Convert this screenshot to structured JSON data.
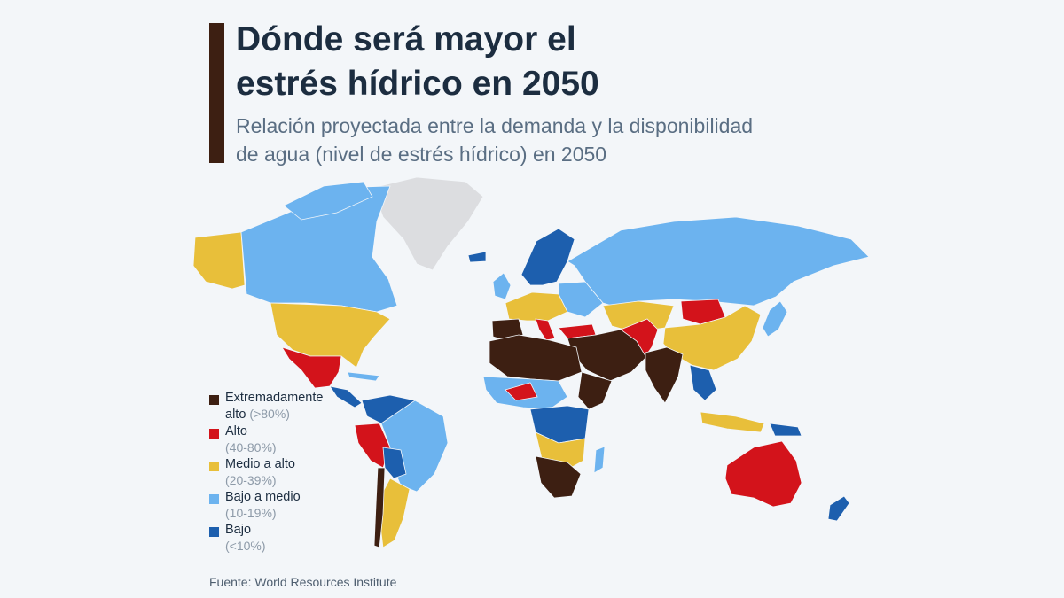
{
  "header": {
    "title_line1": "Dónde será mayor el",
    "title_line2": "estrés hídrico en 2050",
    "subtitle_line1": "Relación proyectada entre la demanda y la disponibilidad",
    "subtitle_line2": "de agua (nivel de estrés hídrico) en 2050"
  },
  "colors": {
    "accent": "#3d1f12",
    "extremely_high": "#3d1f12",
    "high": "#d3131b",
    "medium_high": "#e8bf3a",
    "low_medium": "#6cb3ef",
    "low": "#1d5fae",
    "no_data": "#dcdde0",
    "ocean": "#f3f6f9"
  },
  "legend": [
    {
      "label_line1": "Extremadamente",
      "label_line2": "alto",
      "range": "(>80%)",
      "color_key": "extremely_high"
    },
    {
      "label_line1": "Alto",
      "label_line2": "",
      "range": "(40-80%)",
      "color_key": "high"
    },
    {
      "label_line1": "Medio a alto",
      "label_line2": "",
      "range": "(20-39%)",
      "color_key": "medium_high"
    },
    {
      "label_line1": "Bajo a medio",
      "label_line2": "",
      "range": "(10-19%)",
      "color_key": "low_medium"
    },
    {
      "label_line1": "Bajo",
      "label_line2": "",
      "range": "(<10%)",
      "color_key": "low"
    }
  ],
  "source": "Fuente: World Resources Institute"
}
